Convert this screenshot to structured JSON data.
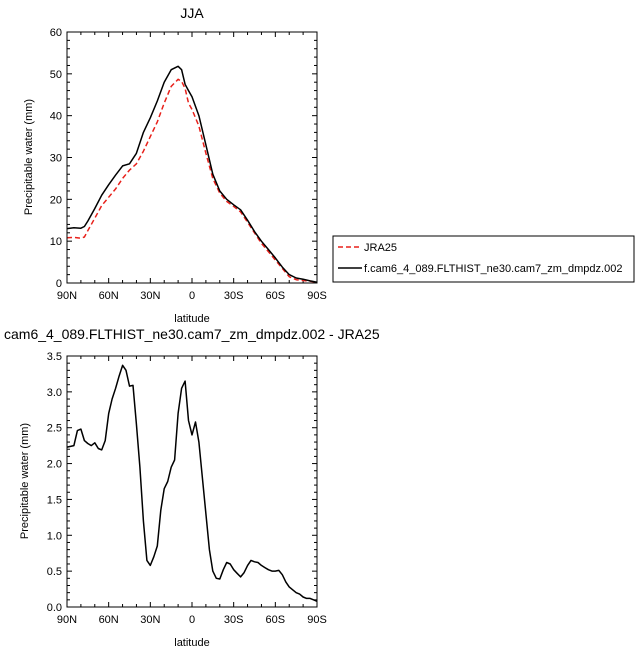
{
  "chart_data": [
    {
      "type": "line",
      "title": "JJA",
      "xlabel": "latitude",
      "ylabel": "Precipitable water (mm)",
      "xlim": [
        90,
        -90
      ],
      "ylim": [
        0,
        60
      ],
      "x_ticks": [
        90,
        60,
        30,
        0,
        -30,
        -60,
        -90
      ],
      "x_tick_labels": [
        "90N",
        "60N",
        "30N",
        "0",
        "30S",
        "60S",
        "90S"
      ],
      "y_ticks": [
        0,
        10,
        20,
        30,
        40,
        50,
        60
      ],
      "y_tick_labels": [
        "0",
        "10",
        "20",
        "30",
        "40",
        "50",
        "60"
      ],
      "legend_position": "right",
      "series": [
        {
          "name": "JRA25",
          "color": "#e8201a",
          "dash": "dashed",
          "x": [
            90,
            85,
            80,
            77.5,
            75,
            70,
            65,
            60,
            55,
            50,
            45,
            40,
            35,
            30,
            25,
            20,
            15,
            10,
            7.5,
            5,
            2.5,
            0,
            -5,
            -10,
            -15,
            -20,
            -25,
            -30,
            -35,
            -40,
            -45,
            -50,
            -55,
            -60,
            -65,
            -70,
            -75,
            -80,
            -85,
            -90
          ],
          "y": [
            10.8,
            10.9,
            10.7,
            11.0,
            12.5,
            15.5,
            18.5,
            20.5,
            22.5,
            25.0,
            27.0,
            28.5,
            31.5,
            35.0,
            38.5,
            43.0,
            47.0,
            48.7,
            48.2,
            46.5,
            43.0,
            41.5,
            37.5,
            31.0,
            25.0,
            21.5,
            19.5,
            18.3,
            17.0,
            14.5,
            12.0,
            9.5,
            7.5,
            5.5,
            3.5,
            1.5,
            0.8,
            0.6,
            0.4,
            0.2
          ]
        },
        {
          "name": "f.cam6_4_089.FLTHIST_ne30.cam7_zm_dmpdz.002",
          "color": "#000000",
          "dash": "solid",
          "x": [
            90,
            85,
            80,
            77.5,
            75,
            70,
            65,
            60,
            55,
            50,
            45,
            40,
            35,
            30,
            25,
            20,
            15,
            10,
            7.5,
            5,
            2.5,
            0,
            -5,
            -10,
            -15,
            -20,
            -25,
            -30,
            -35,
            -40,
            -45,
            -50,
            -55,
            -60,
            -65,
            -70,
            -75,
            -80,
            -85,
            -90
          ],
          "y": [
            13.0,
            13.2,
            13.1,
            13.5,
            14.8,
            17.8,
            21.0,
            23.5,
            25.8,
            28.0,
            28.5,
            31.0,
            36.0,
            39.5,
            43.5,
            48.0,
            51.0,
            51.8,
            51.0,
            47.5,
            46.0,
            44.5,
            40.0,
            33.0,
            26.0,
            22.0,
            20.0,
            18.7,
            17.5,
            15.0,
            12.3,
            10.0,
            8.0,
            6.0,
            3.8,
            2.0,
            1.2,
            0.9,
            0.5,
            0.2
          ]
        }
      ]
    },
    {
      "type": "line",
      "title": "cam6_4_089.FLTHIST_ne30.cam7_zm_dmpdz.002 - JRA25",
      "xlabel": "latitude",
      "ylabel": "Precipitable water (mm)",
      "xlim": [
        90,
        -90
      ],
      "ylim": [
        0,
        3.5
      ],
      "x_ticks": [
        90,
        60,
        30,
        0,
        -30,
        -60,
        -90
      ],
      "x_tick_labels": [
        "90N",
        "60N",
        "30N",
        "0",
        "30S",
        "60S",
        "90S"
      ],
      "y_ticks": [
        0,
        0.5,
        1.0,
        1.5,
        2.0,
        2.5,
        3.0,
        3.5
      ],
      "y_tick_labels": [
        "0.0",
        "0.5",
        "1.0",
        "1.5",
        "2.0",
        "2.5",
        "3.0",
        "3.5"
      ],
      "series": [
        {
          "color": "#000000",
          "dash": "solid",
          "x": [
            90,
            87.5,
            85,
            82.5,
            80,
            77.5,
            75,
            72.5,
            70,
            67.5,
            65,
            62.5,
            60,
            57.5,
            55,
            52.5,
            50,
            47.5,
            45,
            42.5,
            40,
            37.5,
            35,
            32.5,
            30,
            27.5,
            25,
            22.5,
            20,
            17.5,
            15,
            12.5,
            10,
            7.5,
            5,
            2.5,
            0,
            -2.5,
            -5,
            -7.5,
            -10,
            -12.5,
            -15,
            -17.5,
            -20,
            -22.5,
            -25,
            -27.5,
            -30,
            -32.5,
            -35,
            -37.5,
            -40,
            -42.5,
            -45,
            -47.5,
            -50,
            -52.5,
            -55,
            -57.5,
            -60,
            -62.5,
            -65,
            -67.5,
            -70,
            -72.5,
            -75,
            -77.5,
            -80,
            -82.5,
            -85,
            -87.5,
            -90
          ],
          "y": [
            2.23,
            2.24,
            2.25,
            2.46,
            2.48,
            2.32,
            2.28,
            2.25,
            2.29,
            2.21,
            2.19,
            2.32,
            2.7,
            2.9,
            3.05,
            3.22,
            3.37,
            3.3,
            3.08,
            3.09,
            2.55,
            1.95,
            1.2,
            0.65,
            0.58,
            0.7,
            0.85,
            1.35,
            1.65,
            1.75,
            1.95,
            2.05,
            2.7,
            3.05,
            3.15,
            2.6,
            2.4,
            2.58,
            2.3,
            1.8,
            1.3,
            0.8,
            0.5,
            0.4,
            0.39,
            0.52,
            0.62,
            0.6,
            0.52,
            0.47,
            0.42,
            0.48,
            0.58,
            0.65,
            0.63,
            0.62,
            0.58,
            0.55,
            0.52,
            0.5,
            0.5,
            0.51,
            0.45,
            0.35,
            0.28,
            0.24,
            0.2,
            0.18,
            0.14,
            0.12,
            0.12,
            0.1,
            0.08
          ]
        }
      ]
    }
  ]
}
